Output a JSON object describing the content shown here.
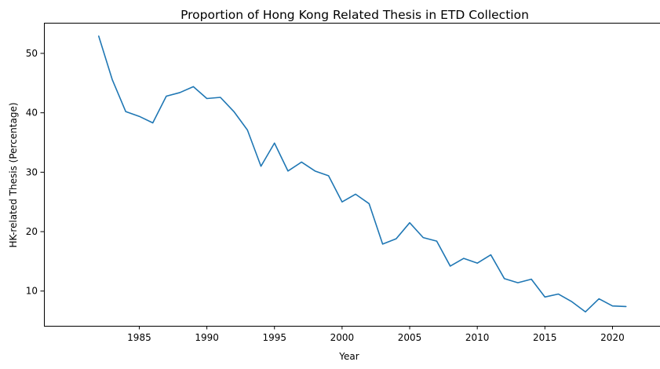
{
  "chart_data": {
    "type": "line",
    "title": "Proportion of Hong Kong Related Thesis in ETD Collection",
    "xlabel": "Year",
    "ylabel": "HK-related Thesis (Percentage)",
    "xlim": [
      1977.95,
      2023.05
    ],
    "ylim": [
      4.15,
      55.15
    ],
    "xticks": [
      1985,
      1990,
      1995,
      2000,
      2005,
      2010,
      2015,
      2020
    ],
    "yticks": [
      10,
      20,
      30,
      40,
      50
    ],
    "grid": false,
    "legend": "none",
    "series": [
      {
        "color": "#1f77b4",
        "x": [
          1982,
          1983,
          1984,
          1985,
          1986,
          1987,
          1988,
          1989,
          1990,
          1991,
          1992,
          1993,
          1994,
          1995,
          1996,
          1997,
          1998,
          1999,
          2000,
          2001,
          2002,
          2003,
          2004,
          2005,
          2006,
          2007,
          2008,
          2009,
          2010,
          2011,
          2012,
          2013,
          2014,
          2015,
          2016,
          2017,
          2018,
          2019,
          2020,
          2021
        ],
        "y": [
          52.9,
          45.6,
          40.2,
          39.4,
          38.3,
          42.8,
          43.4,
          44.4,
          42.4,
          42.6,
          40.2,
          37.1,
          31.0,
          34.9,
          30.2,
          31.7,
          30.2,
          29.4,
          25.0,
          26.3,
          24.7,
          17.9,
          18.8,
          21.5,
          19.0,
          18.4,
          14.2,
          15.5,
          14.7,
          16.1,
          12.1,
          11.4,
          12.0,
          9.0,
          9.5,
          8.2,
          6.5,
          8.7,
          7.5,
          7.4
        ]
      }
    ]
  }
}
